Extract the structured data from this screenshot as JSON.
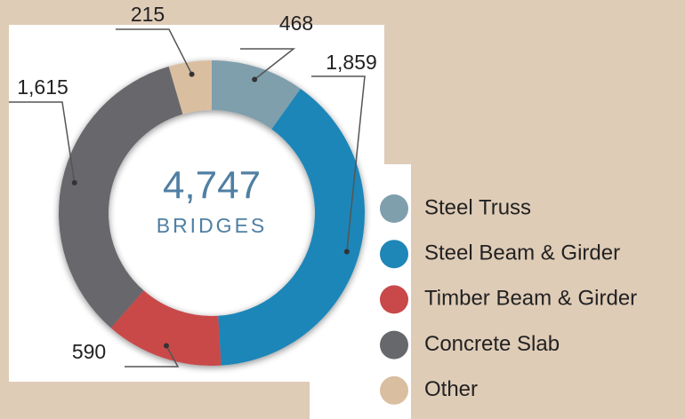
{
  "chart_data": {
    "type": "donut",
    "center_total": {
      "value": 4747,
      "label": "4,747"
    },
    "center_label": "BRIDGES",
    "categories": [
      "Steel Truss",
      "Steel Beam & Girder",
      "Timber Beam & Girder",
      "Concrete Slab",
      "Other"
    ],
    "values": [
      468,
      1859,
      590,
      1615,
      215
    ],
    "value_labels": [
      "468",
      "1,859",
      "590",
      "1,615",
      "215"
    ],
    "colors": [
      "#7f9fad",
      "#1f86b8",
      "#c9484a",
      "#67686c",
      "#d9bea0"
    ],
    "legend": "right"
  }
}
